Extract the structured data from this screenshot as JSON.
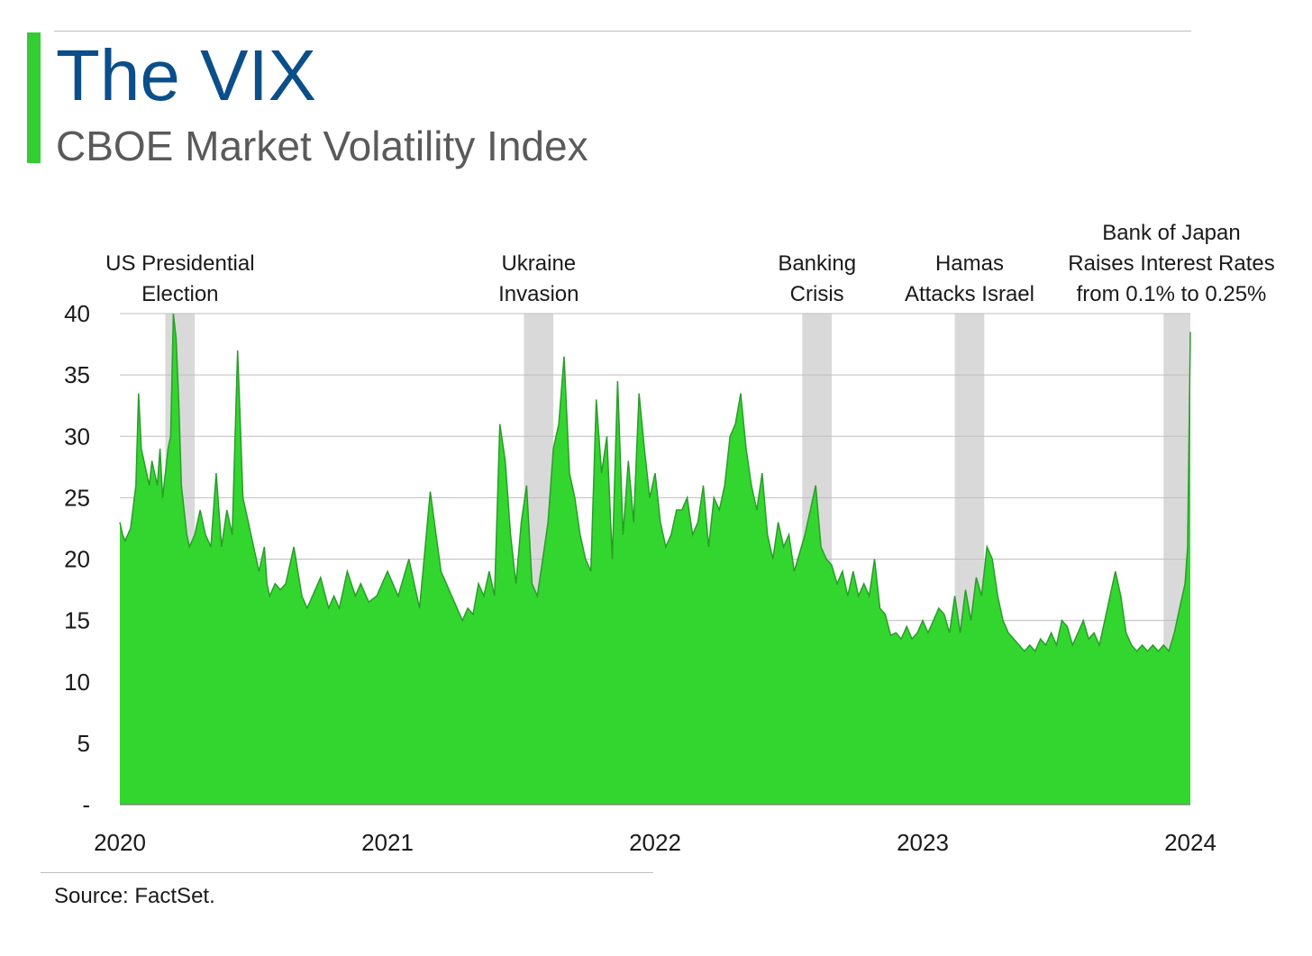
{
  "header": {
    "title": "The VIX",
    "subtitle": "CBOE Market Volatility Index"
  },
  "footer": {
    "source": "Source: FactSet."
  },
  "colors": {
    "accent": "#33cc33",
    "area_fill": "#33d62e",
    "area_stroke": "#2a9d2a",
    "band": "#d9d9d9",
    "grid": "#bfbfbf",
    "title": "#0b4e8a"
  },
  "chart_data": {
    "type": "area",
    "title": "The VIX",
    "subtitle": "CBOE Market Volatility Index",
    "xlabel": "",
    "ylabel": "",
    "xlim": [
      2020,
      2024
    ],
    "ylim": [
      0,
      40
    ],
    "y_ticks": [
      {
        "value": 0,
        "label": "-"
      },
      {
        "value": 5,
        "label": "5"
      },
      {
        "value": 10,
        "label": "10"
      },
      {
        "value": 15,
        "label": "15"
      },
      {
        "value": 20,
        "label": "20"
      },
      {
        "value": 25,
        "label": "25"
      },
      {
        "value": 30,
        "label": "30"
      },
      {
        "value": 35,
        "label": "35"
      },
      {
        "value": 40,
        "label": "40"
      }
    ],
    "x_ticks": [
      {
        "value": 2020,
        "label": "2020"
      },
      {
        "value": 2021,
        "label": "2021"
      },
      {
        "value": 2022,
        "label": "2022"
      },
      {
        "value": 2023,
        "label": "2023"
      },
      {
        "value": 2024,
        "label": "2024"
      }
    ],
    "grid": true,
    "legend": "none",
    "annotations": [
      {
        "x_start": 2020.17,
        "x_end": 2020.28,
        "lines": [
          "US Presidential",
          "Election"
        ]
      },
      {
        "x_start": 2021.51,
        "x_end": 2021.62,
        "lines": [
          "Ukraine",
          "Invasion"
        ]
      },
      {
        "x_start": 2022.55,
        "x_end": 2022.66,
        "lines": [
          "Banking",
          "Crisis"
        ]
      },
      {
        "x_start": 2023.12,
        "x_end": 2023.23,
        "lines": [
          "Hamas",
          "Attacks Israel"
        ]
      },
      {
        "x_start": 2023.9,
        "x_end": 2024.0,
        "lines": [
          "Bank of Japan",
          "Raises Interest Rates",
          "from 0.1% to 0.25%"
        ]
      }
    ],
    "series": [
      {
        "x": [
          2020.0,
          2020.01,
          2020.02,
          2020.04,
          2020.06,
          2020.07,
          2020.08,
          2020.1,
          2020.11,
          2020.12,
          2020.14,
          2020.15,
          2020.16,
          2020.18,
          2020.19,
          2020.2,
          2020.21,
          2020.22,
          2020.23,
          2020.24,
          2020.25,
          2020.26,
          2020.28,
          2020.3,
          2020.32,
          2020.34,
          2020.36,
          2020.38,
          2020.4,
          2020.42,
          2020.44,
          2020.45,
          2020.46,
          2020.48,
          2020.5,
          2020.52,
          2020.54,
          2020.55,
          2020.56,
          2020.58,
          2020.6,
          2020.62,
          2020.65,
          2020.68,
          2020.7,
          2020.72,
          2020.75,
          2020.78,
          2020.8,
          2020.82,
          2020.85,
          2020.88,
          2020.9,
          2020.93,
          2020.96,
          2021.0,
          2021.04,
          2021.08,
          2021.12,
          2021.16,
          2021.2,
          2021.24,
          2021.28,
          2021.3,
          2021.32,
          2021.34,
          2021.36,
          2021.38,
          2021.4,
          2021.42,
          2021.44,
          2021.46,
          2021.48,
          2021.5,
          2021.52,
          2021.54,
          2021.56,
          2021.58,
          2021.6,
          2021.62,
          2021.64,
          2021.66,
          2021.68,
          2021.7,
          2021.72,
          2021.74,
          2021.76,
          2021.78,
          2021.8,
          2021.82,
          2021.84,
          2021.86,
          2021.88,
          2021.9,
          2021.92,
          2021.94,
          2021.96,
          2021.98,
          2022.0,
          2022.02,
          2022.04,
          2022.06,
          2022.08,
          2022.1,
          2022.12,
          2022.14,
          2022.16,
          2022.18,
          2022.2,
          2022.22,
          2022.24,
          2022.26,
          2022.28,
          2022.3,
          2022.32,
          2022.34,
          2022.36,
          2022.38,
          2022.4,
          2022.42,
          2022.44,
          2022.46,
          2022.48,
          2022.5,
          2022.52,
          2022.54,
          2022.56,
          2022.58,
          2022.6,
          2022.62,
          2022.64,
          2022.66,
          2022.68,
          2022.7,
          2022.72,
          2022.74,
          2022.76,
          2022.78,
          2022.8,
          2022.82,
          2022.84,
          2022.86,
          2022.88,
          2022.9,
          2022.92,
          2022.94,
          2022.96,
          2022.98,
          2023.0,
          2023.02,
          2023.04,
          2023.06,
          2023.08,
          2023.1,
          2023.12,
          2023.14,
          2023.16,
          2023.18,
          2023.2,
          2023.22,
          2023.24,
          2023.26,
          2023.28,
          2023.3,
          2023.32,
          2023.34,
          2023.36,
          2023.38,
          2023.4,
          2023.42,
          2023.44,
          2023.46,
          2023.48,
          2023.5,
          2023.52,
          2023.54,
          2023.56,
          2023.58,
          2023.6,
          2023.62,
          2023.64,
          2023.66,
          2023.68,
          2023.7,
          2023.72,
          2023.74,
          2023.76,
          2023.78,
          2023.8,
          2023.82,
          2023.84,
          2023.86,
          2023.88,
          2023.9,
          2023.92,
          2023.94,
          2023.96,
          2023.98,
          2023.99,
          2024.0
        ],
        "values": [
          23,
          22,
          21.5,
          22.5,
          26,
          33.5,
          29,
          27,
          26,
          28,
          26,
          29,
          25,
          29,
          30,
          40,
          38,
          33,
          26,
          24,
          22,
          21,
          22,
          24,
          22,
          21,
          27,
          21,
          24,
          22,
          37,
          31,
          25,
          23,
          21,
          19,
          21,
          18,
          17,
          18,
          17.5,
          18,
          21,
          17,
          16,
          17,
          18.5,
          16,
          17,
          16,
          19,
          17,
          18,
          16.5,
          17,
          19,
          17,
          20,
          16,
          25.5,
          19,
          17,
          15,
          16,
          15.5,
          18,
          17,
          19,
          17,
          31,
          28,
          22,
          18,
          23,
          26,
          18,
          17,
          20,
          23,
          29,
          31,
          36.5,
          27,
          25,
          22,
          20,
          19,
          33,
          27,
          30,
          20,
          34.5,
          22,
          28,
          23,
          33.5,
          29,
          25,
          27,
          23,
          21,
          22,
          24,
          24,
          25,
          22,
          23,
          26,
          21,
          25,
          24,
          26,
          30,
          31,
          33.5,
          29,
          26,
          24,
          27,
          22,
          20,
          23,
          21,
          22,
          19,
          20.5,
          22,
          24,
          26,
          21,
          20,
          19.5,
          18,
          19,
          17,
          19,
          17,
          18,
          17,
          20,
          16,
          15.5,
          13.8,
          14,
          13.5,
          14.5,
          13.5,
          14,
          15,
          14,
          15,
          16,
          15.5,
          14,
          17,
          14,
          17.5,
          15,
          18.5,
          17,
          21,
          20,
          17,
          15,
          14,
          13.5,
          13,
          12.5,
          13,
          12.5,
          13.5,
          13,
          14,
          13,
          15,
          14.5,
          13,
          14,
          15,
          13.5,
          14,
          13,
          15,
          17,
          19,
          17,
          14,
          13,
          12.5,
          13,
          12.5,
          13,
          12.5,
          13,
          12.5,
          14,
          16,
          18,
          21,
          38.5
        ]
      }
    ]
  }
}
